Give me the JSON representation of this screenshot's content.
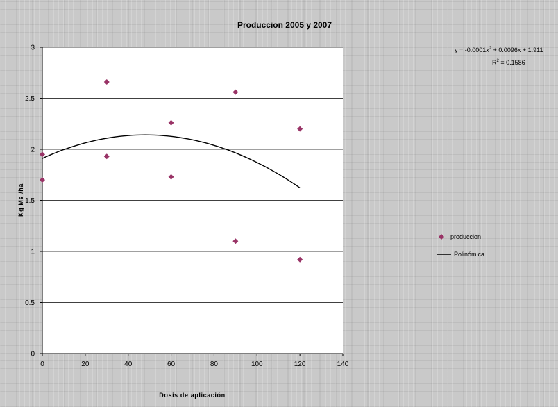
{
  "chart_data": {
    "type": "scatter",
    "title": "Produccion 2005 y 2007",
    "xlabel": "Dosis de aplicación",
    "ylabel": "Kg Ms /ha",
    "xlim": [
      0,
      140
    ],
    "ylim": [
      0,
      3
    ],
    "x_ticks": [
      "0",
      "20",
      "40",
      "60",
      "80",
      "100",
      "120",
      "140"
    ],
    "y_ticks": [
      "0",
      "0.5",
      "1",
      "1.5",
      "2",
      "2.5",
      "3"
    ],
    "grid": "horizontal",
    "legend_position": "right",
    "series": [
      {
        "name": "produccion",
        "marker": "diamond",
        "color": "#993366",
        "points": [
          {
            "x": 0,
            "y": 1.95
          },
          {
            "x": 0,
            "y": 1.7
          },
          {
            "x": 30,
            "y": 2.66
          },
          {
            "x": 30,
            "y": 1.93
          },
          {
            "x": 60,
            "y": 2.26
          },
          {
            "x": 60,
            "y": 1.73
          },
          {
            "x": 90,
            "y": 2.56
          },
          {
            "x": 90,
            "y": 1.1
          },
          {
            "x": 120,
            "y": 2.2
          },
          {
            "x": 120,
            "y": 0.92
          }
        ]
      }
    ],
    "trendline": {
      "name": "Polinómica",
      "type": "polynomial",
      "color": "#000000",
      "coefficients": {
        "a": -0.0001,
        "b": 0.0096,
        "c": 1.911
      },
      "x_range": [
        0,
        120
      ],
      "equation_text": "y = -0.0001x",
      "equation_sup": "2",
      "equation_rest": " + 0.0096x + 1.911",
      "r2_label": "R",
      "r2_sup": "2",
      "r2_value": " = 0.1586"
    }
  }
}
